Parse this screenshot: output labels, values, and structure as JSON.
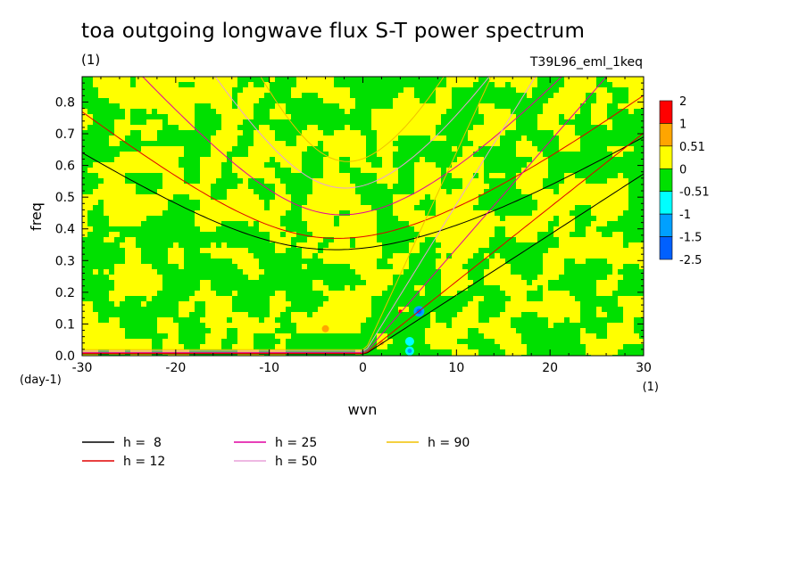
{
  "chart_data": {
    "type": "heatmap",
    "title": "toa outgoing longwave flux S-T power spectrum",
    "subtitle_left": "(1)",
    "subtitle_right": "T39L96_eml_1keq",
    "xlabel": "wvn",
    "ylabel": "freq",
    "x_unit_label": "(1)",
    "y_unit_label": "(day-1)",
    "xlim": [
      -30,
      30
    ],
    "ylim": [
      0.0,
      0.88
    ],
    "x_ticks": [
      "-30",
      "-20",
      "-10",
      "0",
      "10",
      "20",
      "30"
    ],
    "x_tick_values": [
      -30,
      -20,
      -10,
      0,
      10,
      20,
      30
    ],
    "y_ticks": [
      "0.0",
      "0.1",
      "0.2",
      "0.3",
      "0.4",
      "0.5",
      "0.6",
      "0.7",
      "0.8"
    ],
    "y_tick_values": [
      0,
      0.1,
      0.2,
      0.3,
      0.4,
      0.5,
      0.6,
      0.7,
      0.8
    ],
    "colorbar": {
      "levels": [
        "2",
        "1",
        "0.51",
        "0",
        "-0.51",
        "-1",
        "-1.5",
        "-2.5"
      ],
      "colors": [
        "#ff0000",
        "#ffa500",
        "#ffff00",
        "#00e000",
        "#00ffff",
        "#00a0ff",
        "#0060ff"
      ]
    },
    "field_description": "noisy mottled field alternating between 0 to 0.51 (yellow) and -0.51 to 0 (green) everywhere, with small spots of orange and blue near wvn 5",
    "dispersion_curves": {
      "equivalent_depths": [
        {
          "label": "h =  8",
          "value": 8,
          "color": "#000000"
        },
        {
          "label": "h = 12",
          "value": 12,
          "color": "#e00000"
        },
        {
          "label": "h = 25",
          "value": 25,
          "color": "#e000a0"
        },
        {
          "label": "h = 50",
          "value": 50,
          "color": "#e8a0d8"
        },
        {
          "label": "h = 90",
          "value": 90,
          "color": "#f0c000"
        }
      ]
    },
    "grid": false,
    "legend_placement": "bottom-left"
  }
}
